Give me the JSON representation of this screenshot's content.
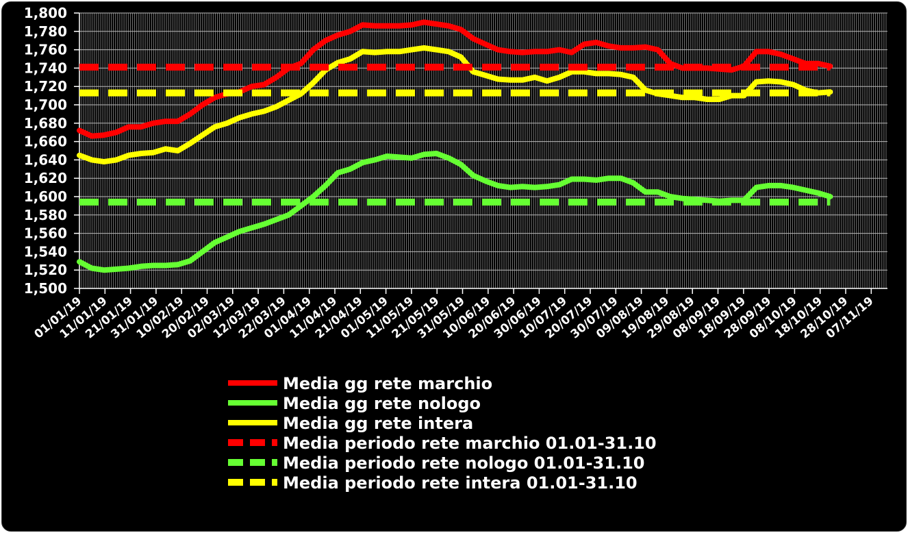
{
  "chart_data": {
    "type": "line",
    "title": "",
    "xlabel": "",
    "ylabel": "",
    "ylim": [
      1500,
      1800
    ],
    "y_ticks": [
      "1,500",
      "1,520",
      "1,540",
      "1,560",
      "1,580",
      "1,600",
      "1,620",
      "1,640",
      "1,660",
      "1,680",
      "1,700",
      "1,720",
      "1,740",
      "1,760",
      "1,780",
      "1,800"
    ],
    "x_ticks": [
      "01/01/19",
      "11/01/19",
      "21/01/19",
      "31/01/19",
      "10/02/19",
      "20/02/19",
      "02/03/19",
      "12/03/19",
      "22/03/19",
      "01/04/19",
      "11/04/19",
      "21/04/19",
      "01/05/19",
      "11/05/19",
      "21/05/19",
      "31/05/19",
      "10/06/19",
      "20/06/19",
      "30/06/19",
      "10/07/19",
      "20/07/19",
      "30/07/19",
      "09/08/19",
      "19/08/19",
      "29/08/19",
      "08/09/19",
      "18/09/19",
      "28/09/19",
      "08/10/19",
      "18/10/19",
      "28/10/19",
      "07/11/19"
    ],
    "grid": true,
    "legend_position": "bottom-center",
    "series": [
      {
        "name": "Media gg rete marchio",
        "color": "#ff0000",
        "style": "solid",
        "x_index": [
          0,
          1,
          2,
          3,
          4,
          5,
          6,
          7,
          8,
          9,
          10,
          11,
          12,
          13,
          14,
          15,
          16,
          17,
          18,
          19,
          20,
          21,
          22,
          23,
          24,
          25,
          26,
          27,
          28,
          29,
          30,
          31,
          32,
          33,
          34,
          35,
          36,
          37,
          38,
          39,
          40,
          41,
          42,
          43,
          44,
          45,
          46,
          47,
          48,
          49,
          50,
          51,
          52,
          53,
          54,
          55,
          56,
          57,
          58,
          59,
          60,
          61
        ],
        "values": [
          1672,
          1666,
          1667,
          1670,
          1676,
          1676,
          1680,
          1682,
          1682,
          1690,
          1700,
          1708,
          1712,
          1714,
          1720,
          1722,
          1730,
          1740,
          1745,
          1760,
          1770,
          1776,
          1780,
          1787,
          1786,
          1786,
          1786,
          1787,
          1790,
          1788,
          1786,
          1782,
          1772,
          1766,
          1760,
          1758,
          1757,
          1758,
          1758,
          1760,
          1757,
          1766,
          1768,
          1764,
          1762,
          1762,
          1763,
          1760,
          1745,
          1740,
          1740,
          1740,
          1739,
          1738,
          1742,
          1758,
          1758,
          1755,
          1750,
          1745,
          1745,
          1742
        ]
      },
      {
        "name": "Media gg rete nologo",
        "color": "#66ff33",
        "style": "solid",
        "x_index": [
          0,
          1,
          2,
          3,
          4,
          5,
          6,
          7,
          8,
          9,
          10,
          11,
          12,
          13,
          14,
          15,
          16,
          17,
          18,
          19,
          20,
          21,
          22,
          23,
          24,
          25,
          26,
          27,
          28,
          29,
          30,
          31,
          32,
          33,
          34,
          35,
          36,
          37,
          38,
          39,
          40,
          41,
          42,
          43,
          44,
          45,
          46,
          47,
          48,
          49,
          50,
          51,
          52,
          53,
          54,
          55,
          56,
          57,
          58,
          59,
          60,
          61
        ],
        "values": [
          1529,
          1522,
          1520,
          1521,
          1522,
          1524,
          1525,
          1525,
          1526,
          1530,
          1540,
          1550,
          1556,
          1562,
          1566,
          1570,
          1575,
          1580,
          1590,
          1600,
          1612,
          1626,
          1630,
          1637,
          1640,
          1644,
          1643,
          1642,
          1646,
          1647,
          1642,
          1635,
          1623,
          1617,
          1612,
          1610,
          1611,
          1610,
          1611,
          1613,
          1619,
          1619,
          1618,
          1620,
          1620,
          1615,
          1605,
          1605,
          1600,
          1598,
          1597,
          1596,
          1595,
          1596,
          1596,
          1610,
          1612,
          1612,
          1610,
          1607,
          1604,
          1600
        ]
      },
      {
        "name": "Media gg rete intera",
        "color": "#ffff00",
        "style": "solid",
        "x_index": [
          0,
          1,
          2,
          3,
          4,
          5,
          6,
          7,
          8,
          9,
          10,
          11,
          12,
          13,
          14,
          15,
          16,
          17,
          18,
          19,
          20,
          21,
          22,
          23,
          24,
          25,
          26,
          27,
          28,
          29,
          30,
          31,
          32,
          33,
          34,
          35,
          36,
          37,
          38,
          39,
          40,
          41,
          42,
          43,
          44,
          45,
          46,
          47,
          48,
          49,
          50,
          51,
          52,
          53,
          54,
          55,
          56,
          57,
          58,
          59,
          60,
          61
        ],
        "values": [
          1645,
          1640,
          1638,
          1640,
          1645,
          1647,
          1648,
          1652,
          1650,
          1658,
          1667,
          1676,
          1680,
          1686,
          1690,
          1693,
          1698,
          1705,
          1712,
          1724,
          1738,
          1746,
          1750,
          1758,
          1757,
          1758,
          1758,
          1760,
          1762,
          1760,
          1758,
          1752,
          1736,
          1732,
          1728,
          1727,
          1727,
          1730,
          1726,
          1730,
          1736,
          1736,
          1734,
          1734,
          1733,
          1730,
          1716,
          1712,
          1710,
          1708,
          1708,
          1706,
          1706,
          1710,
          1710,
          1725,
          1726,
          1725,
          1722,
          1716,
          1713,
          1714
        ]
      },
      {
        "name": "Media periodo rete marchio 01.01-31.10",
        "color": "#ff0000",
        "style": "dashed",
        "constant": 1741
      },
      {
        "name": "Media periodo rete nologo 01.01-31.10",
        "color": "#66ff33",
        "style": "dashed",
        "constant": 1594
      },
      {
        "name": "Media periodo rete intera 01.01-31.10",
        "color": "#ffff00",
        "style": "dashed",
        "constant": 1713
      }
    ]
  }
}
